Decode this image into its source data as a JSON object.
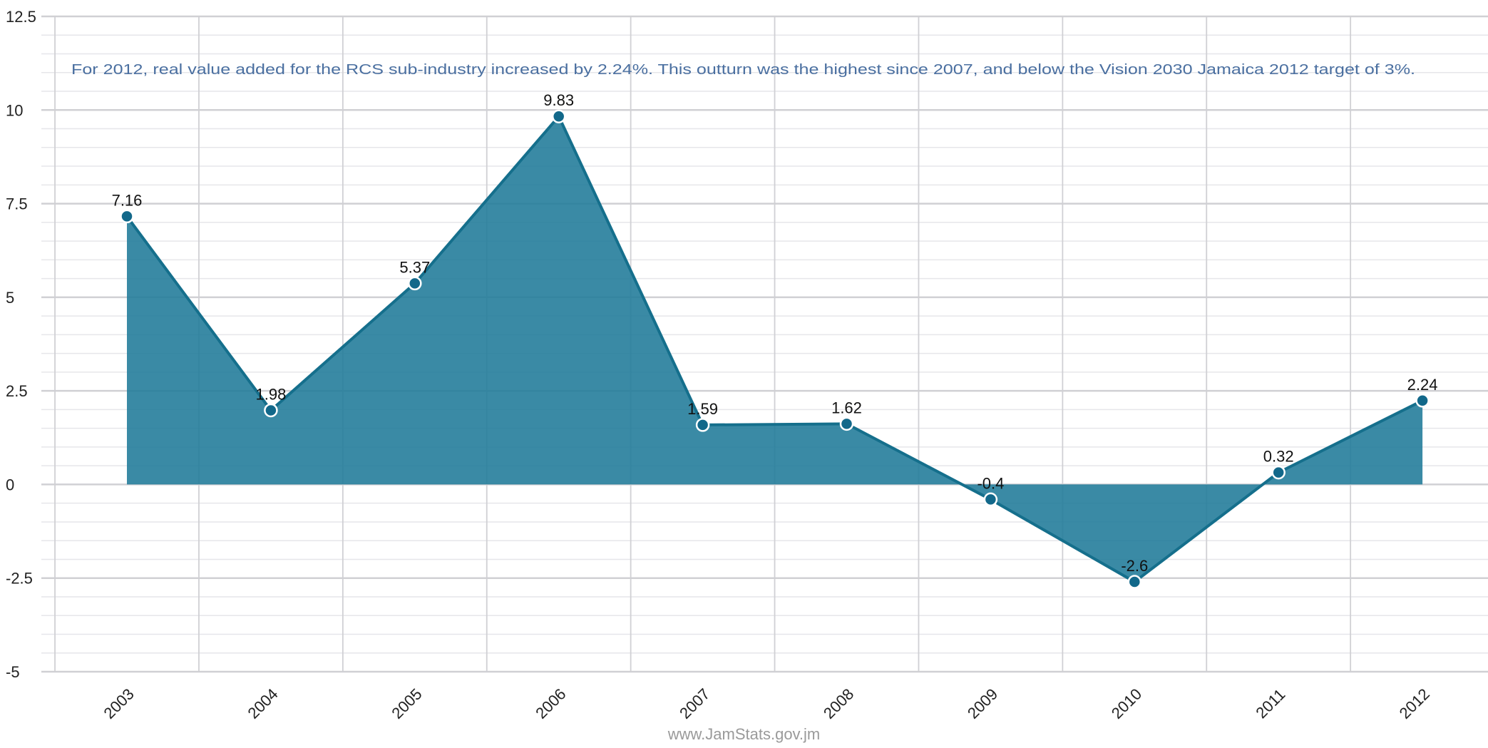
{
  "chart_data": {
    "type": "area",
    "title": "",
    "xlabel": "",
    "ylabel": "",
    "annotation": "For 2012, real value added for the RCS sub-industry increased by 2.24%. This outturn was the highest since 2007, and below the Vision 2030 Jamaica 2012 target of 3%.",
    "categories": [
      "2003",
      "2004",
      "2005",
      "2006",
      "2007",
      "2008",
      "2009",
      "2010",
      "2011",
      "2012"
    ],
    "series": [
      {
        "values": [
          7.16,
          1.98,
          5.37,
          9.83,
          1.59,
          1.62,
          -0.4,
          -2.6,
          0.32,
          2.24
        ],
        "labels": [
          "7.16",
          "1.98",
          "5.37",
          "9.83",
          "1.59",
          "1.62",
          "-0.4",
          "-2.6",
          "0.32",
          "2.24"
        ]
      }
    ],
    "ylim": [
      -5,
      12.5
    ],
    "yticks": [
      "-5",
      "-2.5",
      "0",
      "2.5",
      "5",
      "7.5",
      "10",
      "12.5"
    ],
    "grid": true,
    "colors": {
      "area_fill": "#1f7a99",
      "line": "#156f8c",
      "marker": "#12688a",
      "marker_stroke": "#ffffff",
      "grid_major": "#d0d0d4",
      "grid_minor": "#e6e6ea",
      "annotation_text": "#4a6fa0",
      "axis_text": "#222222"
    }
  },
  "footer": {
    "credit": "www.JamStats.gov.jm"
  }
}
